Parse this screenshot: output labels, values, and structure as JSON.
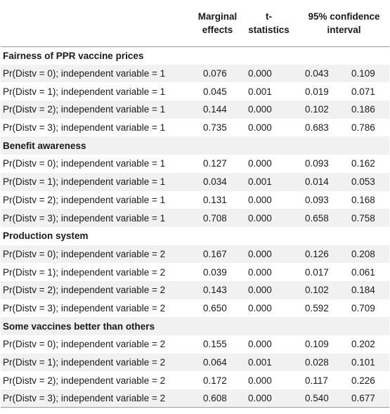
{
  "header": {
    "marginal": [
      "Marginal",
      "effects"
    ],
    "tstat": [
      "t-",
      "statistics"
    ],
    "ci": [
      "95% confidence",
      "interval"
    ]
  },
  "sections": [
    {
      "title": "Fairness of PPR vaccine prices",
      "rows": [
        {
          "label": "Pr(Distv = 0); independent variable = 1",
          "me": "0.076",
          "t": "0.000",
          "lo": "0.043",
          "hi": "0.109"
        },
        {
          "label": "Pr(Distv = 1); independent variable = 1",
          "me": "0.045",
          "t": "0.001",
          "lo": "0.019",
          "hi": "0.071"
        },
        {
          "label": "Pr(Distv = 2); independent variable = 1",
          "me": "0.144",
          "t": "0.000",
          "lo": "0.102",
          "hi": "0.186"
        },
        {
          "label": "Pr(Distv = 3); independent variable = 1",
          "me": "0.735",
          "t": "0.000",
          "lo": "0.683",
          "hi": "0.786"
        }
      ]
    },
    {
      "title": "Benefit awareness",
      "rows": [
        {
          "label": "Pr(Distv = 0); independent variable = 1",
          "me": "0.127",
          "t": "0.000",
          "lo": "0.093",
          "hi": "0.162"
        },
        {
          "label": "Pr(Distv = 1); independent variable = 1",
          "me": "0.034",
          "t": "0.001",
          "lo": "0.014",
          "hi": "0.053"
        },
        {
          "label": "Pr(Distv = 2); independent variable = 1",
          "me": "0.131",
          "t": "0.000",
          "lo": "0.093",
          "hi": "0.168"
        },
        {
          "label": "Pr(Distv = 3); independent variable = 1",
          "me": "0.708",
          "t": "0.000",
          "lo": "0.658",
          "hi": "0.758"
        }
      ]
    },
    {
      "title": "Production system",
      "rows": [
        {
          "label": "Pr(Distv = 0); independent variable = 2",
          "me": "0.167",
          "t": "0.000",
          "lo": "0.126",
          "hi": "0.208"
        },
        {
          "label": "Pr(Distv = 1); independent variable = 2",
          "me": "0.039",
          "t": "0.000",
          "lo": "0.017",
          "hi": "0.061"
        },
        {
          "label": "Pr(Distv = 2); independent variable = 2",
          "me": "0.143",
          "t": "0.000",
          "lo": "0.102",
          "hi": "0.184"
        },
        {
          "label": "Pr(Distv = 3); independent variable = 2",
          "me": "0.650",
          "t": "0.000",
          "lo": "0.592",
          "hi": "0.709"
        }
      ]
    },
    {
      "title": "Some vaccines better than others",
      "rows": [
        {
          "label": "Pr(Distv = 0); independent variable = 2",
          "me": "0.155",
          "t": "0.000",
          "lo": "0.109",
          "hi": "0.202"
        },
        {
          "label": "Pr(Distv = 1); independent variable = 2",
          "me": "0.064",
          "t": "0.001",
          "lo": "0.028",
          "hi": "0.101"
        },
        {
          "label": "Pr(Distv = 2); independent variable = 2",
          "me": "0.172",
          "t": "0.000",
          "lo": "0.117",
          "hi": "0.226"
        },
        {
          "label": "Pr(Distv = 3); independent variable = 2",
          "me": "0.608",
          "t": "0.000",
          "lo": "0.540",
          "hi": "0.677"
        }
      ]
    }
  ]
}
